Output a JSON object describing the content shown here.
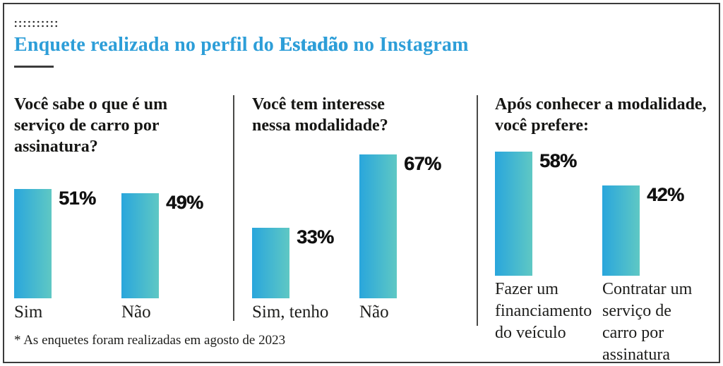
{
  "header": {
    "title_prefix": "Enquete realizada no perfil do ",
    "title_brand": "Estadão",
    "title_suffix": " no Instagram"
  },
  "footnote": "* As enquetes foram realizadas em agosto de 2023",
  "colors": {
    "accent_blue": "#2d9ed8",
    "bar_gradient_start": "#29a6dc",
    "bar_gradient_end": "#5fc8c4",
    "text_dark": "#1a1a18",
    "border_dark": "#3b3b3b"
  },
  "chart_data": [
    {
      "type": "bar",
      "title": "Você sabe o que é um serviço de carro por assinatura?",
      "categories": [
        "Sim",
        "Não"
      ],
      "values": [
        51,
        49
      ],
      "value_labels": [
        "51%",
        "49%"
      ],
      "ylabel": "",
      "xlabel": "",
      "ylim": [
        0,
        100
      ],
      "grid": false,
      "legend": "none"
    },
    {
      "type": "bar",
      "title": "Você tem interesse nessa modalidade?",
      "categories": [
        "Sim, tenho",
        "Não"
      ],
      "values": [
        33,
        67
      ],
      "value_labels": [
        "33%",
        "67%"
      ],
      "ylabel": "",
      "xlabel": "",
      "ylim": [
        0,
        100
      ],
      "grid": false,
      "legend": "none"
    },
    {
      "type": "bar",
      "title": "Após conhecer a modalidade, você prefere:",
      "categories": [
        "Fazer um financiamento do veículo",
        "Contratar um serviço de carro por assinatura"
      ],
      "values": [
        58,
        42
      ],
      "value_labels": [
        "58%",
        "42%"
      ],
      "ylabel": "",
      "xlabel": "",
      "ylim": [
        0,
        100
      ],
      "grid": false,
      "legend": "none"
    }
  ]
}
